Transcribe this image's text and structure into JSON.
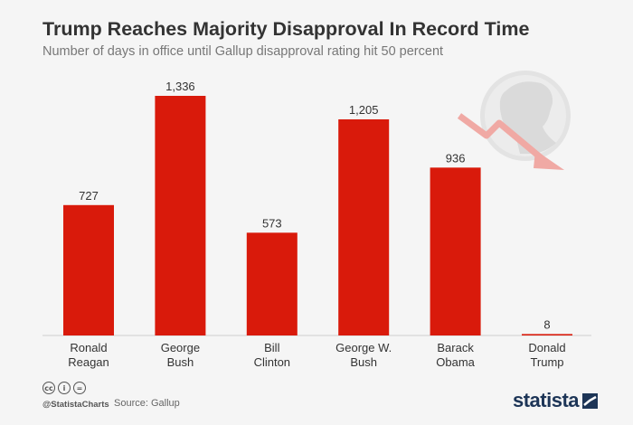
{
  "chart_data": {
    "type": "bar",
    "title": "Trump Reaches Majority Disapproval In Record Time",
    "subtitle": "Number of days in office until Gallup disapproval rating hit 50 percent",
    "categories": [
      [
        "Ronald",
        "Reagan"
      ],
      [
        "George",
        "Bush"
      ],
      [
        "Bill",
        "Clinton"
      ],
      [
        "George W.",
        "Bush"
      ],
      [
        "Barack",
        "Obama"
      ],
      [
        "Donald",
        "Trump"
      ]
    ],
    "values": [
      727,
      1336,
      573,
      1205,
      936,
      8
    ],
    "value_labels": [
      "727",
      "1,336",
      "573",
      "1,205",
      "936",
      "8"
    ],
    "ylim": [
      0,
      1336
    ],
    "bar_color": "#d91a0b",
    "grid": false,
    "legend": "none"
  },
  "footer": {
    "handle": "@StatistaCharts",
    "source": "Source: Gallup",
    "brand": "statista",
    "license_icons": [
      "cc",
      "i",
      "="
    ]
  },
  "colors": {
    "background": "#f5f5f5",
    "bar": "#d91a0b",
    "title": "#333333",
    "brand": "#1d3557"
  }
}
